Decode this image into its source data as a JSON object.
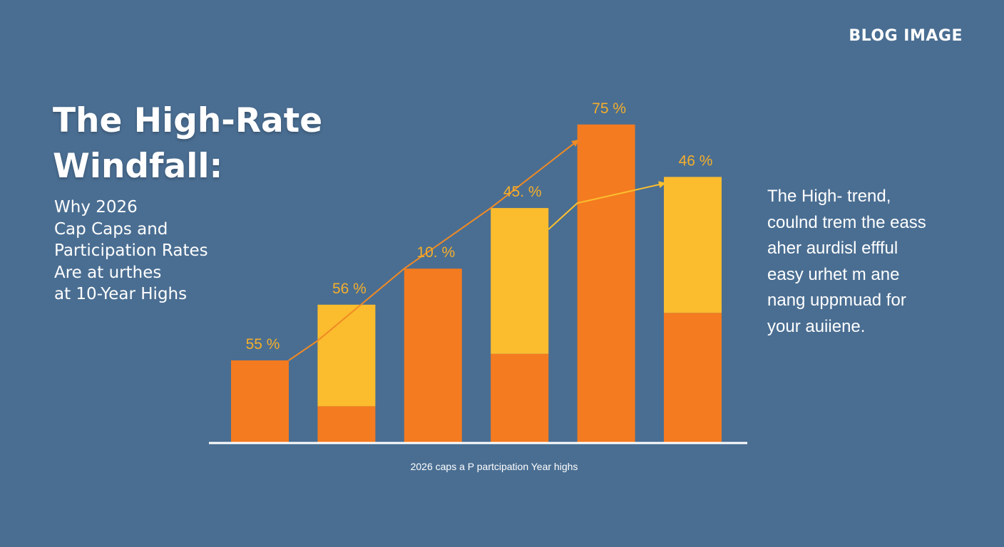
{
  "brand": "BLOG IMAGE",
  "headline": [
    "The High-Rate",
    "Windfall:"
  ],
  "subhead": [
    "Why 2026",
    "Cap Caps and",
    "Participation Rates",
    "Are at urthes",
    "at 10-Year Highs"
  ],
  "side_text": [
    "The High- trend,",
    "coulnd trem the eass",
    "aher aurdisl effful",
    "easy urhet m ane",
    "nang uppmuad for",
    "your auiiene."
  ],
  "colors": {
    "background": "#4a6e92",
    "orange": "#f47b20",
    "yellow": "#fbbc2e",
    "label": "#f4ae2b",
    "trend_left": "#f08a24",
    "trend_right": "#fbbf2e"
  },
  "chart_data": {
    "type": "bar",
    "stacked": true,
    "caption": "2026 caps a P partcipation Year highs",
    "labels": [
      "55 %",
      "56 %",
      "10. %",
      "45. %",
      "75 %",
      "46 %"
    ],
    "ylim": [
      0,
      100
    ],
    "series": [
      {
        "color": "orange",
        "values": [
          25,
          11,
          53,
          27,
          97,
          39.5
        ]
      },
      {
        "color": "yellow",
        "values": [
          0,
          31,
          0,
          44.5,
          0,
          41.5
        ]
      }
    ],
    "trend_lines": [
      {
        "color": "trend_left",
        "points": [
          [
            0,
            25
          ],
          [
            1,
            31
          ],
          [
            2,
            53
          ],
          [
            3,
            71.5
          ],
          [
            4,
            92
          ]
        ]
      },
      {
        "color": "trend_right",
        "points": [
          [
            3,
            65
          ],
          [
            4,
            73
          ],
          [
            5,
            79
          ]
        ]
      }
    ]
  }
}
